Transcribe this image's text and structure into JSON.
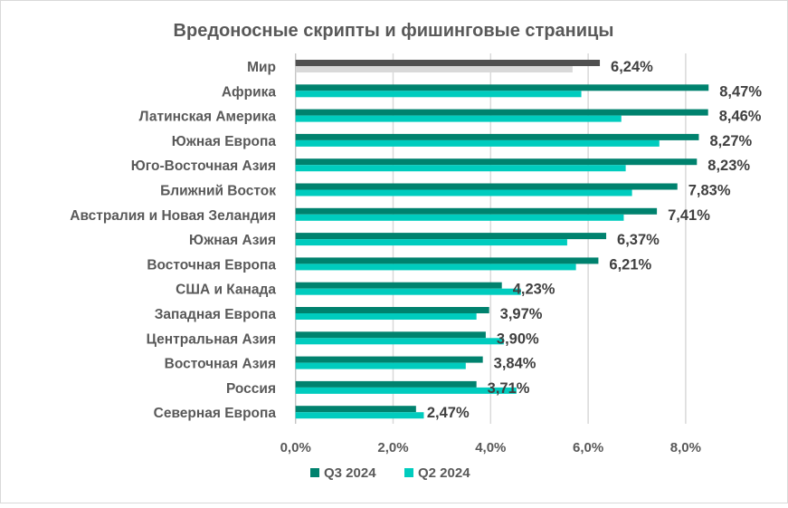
{
  "chart_data": {
    "type": "bar",
    "orientation": "horizontal",
    "title": "Вредоносные скрипты и фишинговые страницы",
    "categories": [
      "Мир",
      "Африка",
      "Латинская Америка",
      "Южная Европа",
      "Юго-Восточная Азия",
      "Ближний Восток",
      "Австралия и Новая Зеландия",
      "Южная Азия",
      "Восточная Европа",
      "США и Канада",
      "Западная Европа",
      "Центральная Азия",
      "Восточная Азия",
      "Россия",
      "Северная Европа"
    ],
    "series": [
      {
        "name": "Q3 2024",
        "color": "#00826E",
        "highlight_color": "#505050",
        "values": [
          6.24,
          8.47,
          8.46,
          8.27,
          8.23,
          7.83,
          7.41,
          6.37,
          6.21,
          4.23,
          3.97,
          3.9,
          3.84,
          3.71,
          2.47
        ],
        "data_labels": [
          "6,24%",
          "8,47%",
          "8,46%",
          "8,27%",
          "8,23%",
          "7,83%",
          "7,41%",
          "6,37%",
          "6,21%",
          "4,23%",
          "3,97%",
          "3,90%",
          "3,84%",
          "3,71%",
          "2,47%"
        ]
      },
      {
        "name": "Q2 2024",
        "color": "#00CCBE",
        "highlight_color": "#D9D9D9",
        "values": [
          5.68,
          5.86,
          6.68,
          7.46,
          6.77,
          6.9,
          6.73,
          5.57,
          5.75,
          4.62,
          3.71,
          4.27,
          3.49,
          4.53,
          2.63
        ]
      }
    ],
    "xlim": [
      0,
      8.8
    ],
    "xticks": [
      0,
      2,
      4,
      6,
      8
    ],
    "xtick_labels": [
      "0,0%",
      "2,0%",
      "4,0%",
      "6,0%",
      "8,0%"
    ],
    "grid": "vertical",
    "legend": "bottom"
  }
}
